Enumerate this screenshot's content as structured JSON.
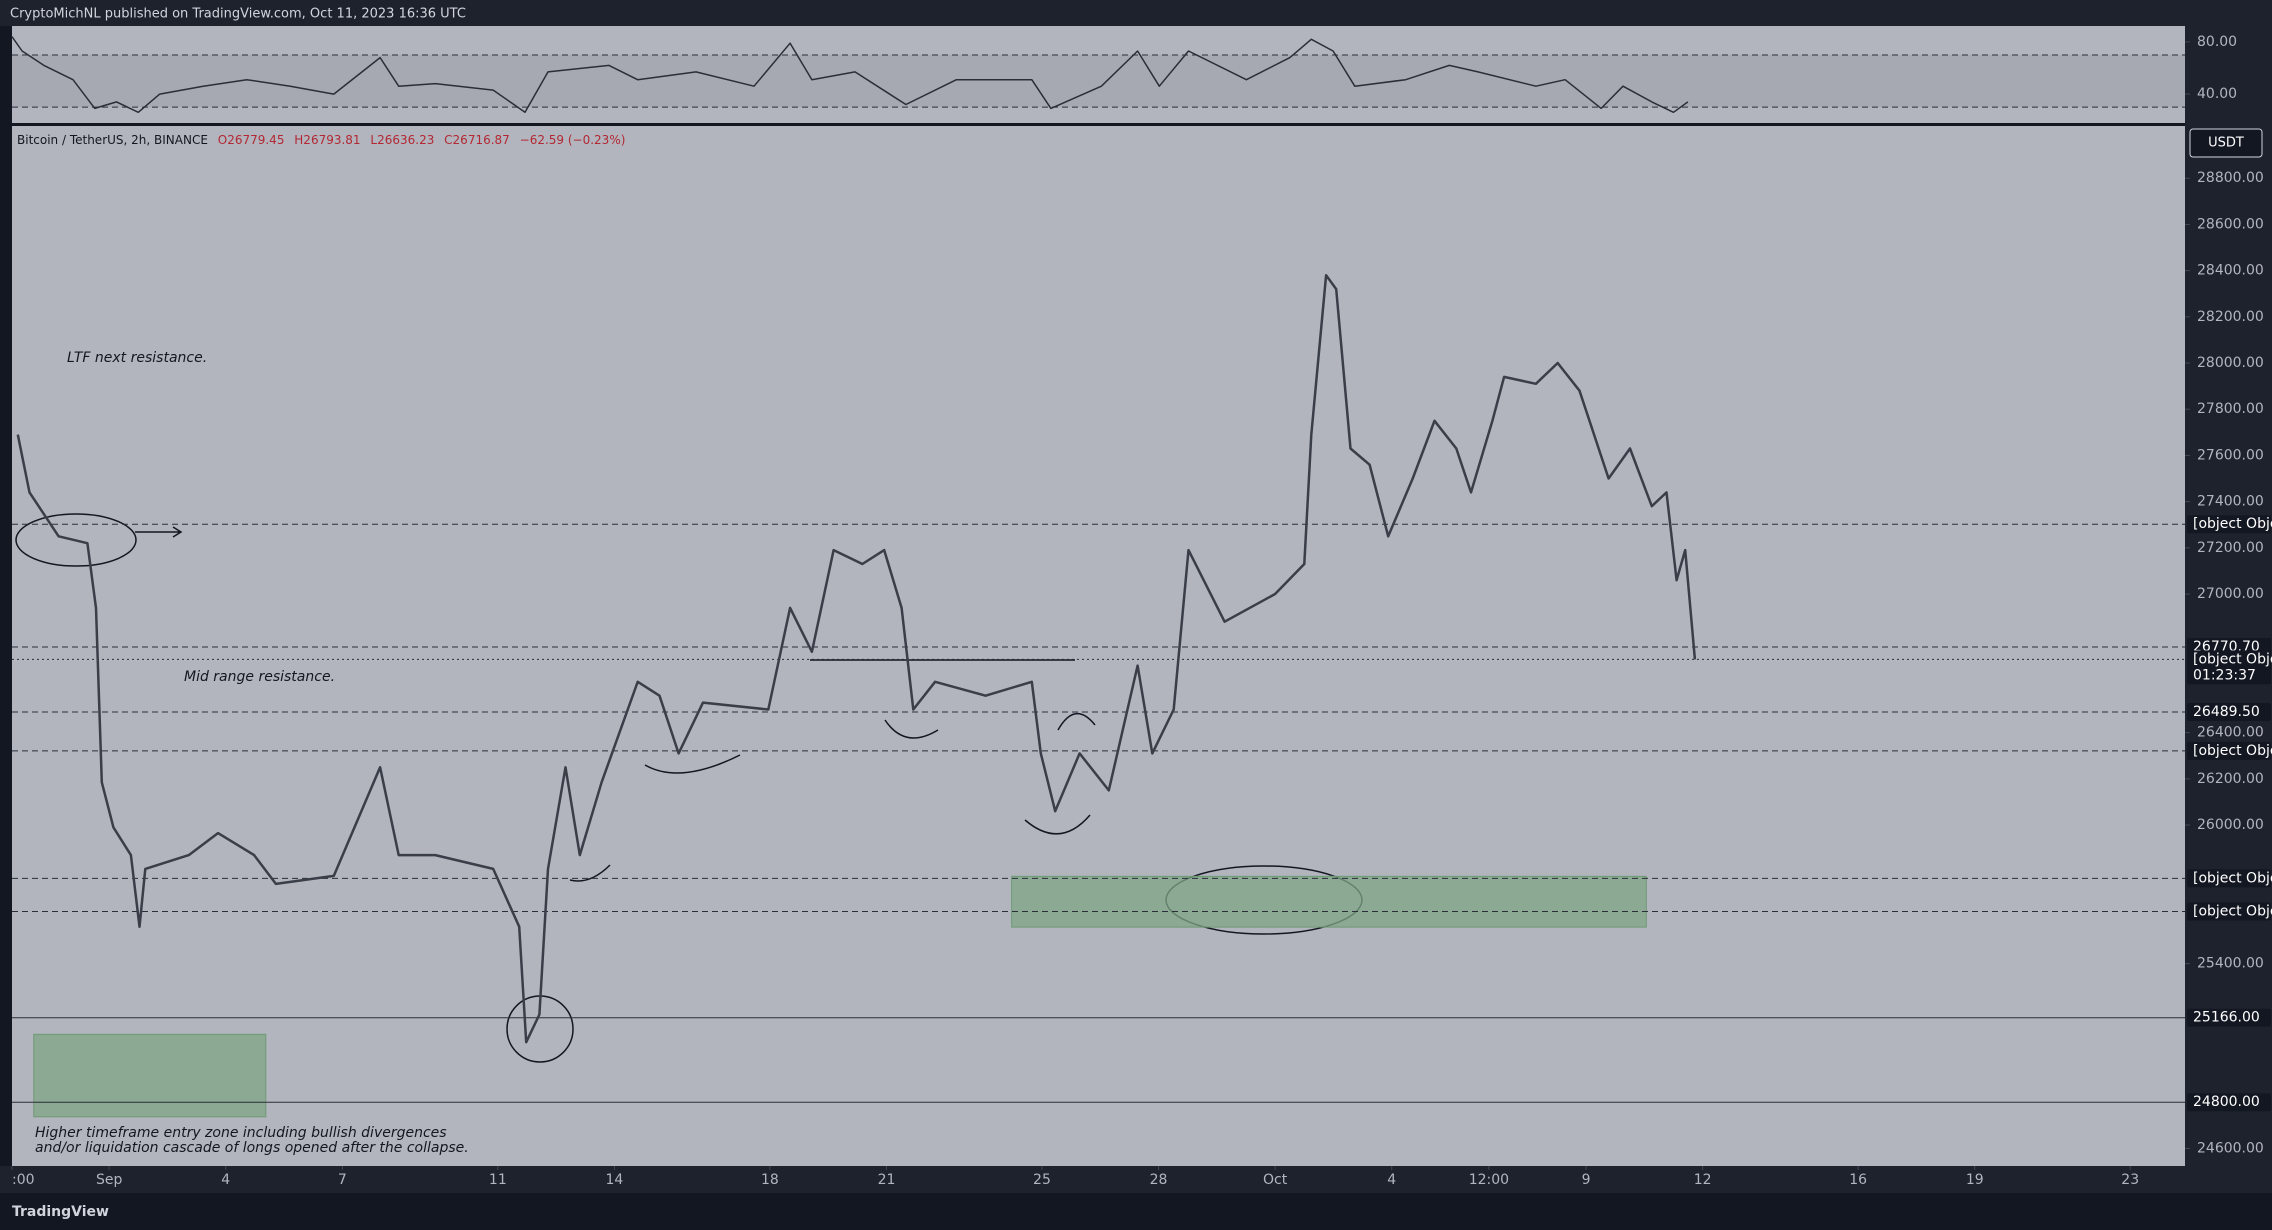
{
  "header": {
    "title": "CryptoMichNL published on TradingView.com, Oct 11, 2023 16:36 UTC"
  },
  "legend": {
    "symbol": "Bitcoin / TetherUS, 2h, BINANCE",
    "open": "O26779.45",
    "high": "H26793.81",
    "low": "L26636.23",
    "close": "C26716.87",
    "change": "−62.59 (−0.23%)"
  },
  "currency_button": "USDT",
  "chart_data": {
    "type": "line",
    "color": "#3a3e49",
    "x": [
      -2.35,
      -2.05,
      -1.3,
      -0.56,
      -0.34,
      -0.19,
      0.11,
      0.56,
      0.78,
      0.93,
      2.05,
      2.8,
      3.73,
      4.29,
      5.78,
      6.97,
      7.45,
      8.39,
      9.88,
      10.55,
      10.73,
      11.07,
      11.29,
      11.74,
      12.11,
      12.67,
      13.6,
      14.16,
      14.65,
      15.28,
      16.96,
      17.52,
      18.08,
      18.64,
      19.38,
      19.94,
      20.39,
      20.69,
      21.25,
      22.55,
      23.74,
      23.97,
      24.34,
      24.97,
      25.72,
      26.46,
      26.84,
      27.39,
      27.77,
      28.7,
      30,
      30.75,
      30.93,
      31.31,
      31.57,
      31.94,
      32.43,
      32.91,
      33.54,
      34.1,
      34.66,
      35.04,
      35.59,
      35.89,
      36.71,
      37.27,
      37.83,
      38.58,
      39.13,
      39.69,
      40.07,
      40.33,
      40.55,
      40.8
    ],
    "series": [
      {
        "name": "BTCUSDT",
        "values": [
          27690,
          27440,
          27250,
          27220,
          26940,
          26185,
          25990,
          25870,
          25560,
          25810,
          25870,
          25965,
          25870,
          25745,
          25780,
          26250,
          25870,
          25870,
          25810,
          25560,
          25060,
          25180,
          25810,
          26250,
          25870,
          26185,
          26620,
          26560,
          26310,
          26530,
          26500,
          26940,
          26750,
          27190,
          27130,
          27190,
          26940,
          26500,
          26620,
          26560,
          26620,
          26310,
          26060,
          26310,
          26150,
          26690,
          26310,
          26500,
          27190,
          26880,
          27000,
          27130,
          27690,
          28380,
          28320,
          27630,
          27560,
          27250,
          27500,
          27750,
          27630,
          27440,
          27750,
          27940,
          27910,
          28000,
          27880,
          27500,
          27630,
          27380,
          27440,
          27060,
          27190,
          26716.87
        ]
      }
    ],
    "xlim": [
      -2.5,
      53.41
    ],
    "ylim": [
      24524,
      29026
    ],
    "xticks": [
      {
        "value": -2.5,
        "label": ":00"
      },
      {
        "value": 0,
        "label": "Sep"
      },
      {
        "value": 3,
        "label": "4"
      },
      {
        "value": 6,
        "label": "7"
      },
      {
        "value": 10,
        "label": "11"
      },
      {
        "value": 13,
        "label": "14"
      },
      {
        "value": 17,
        "label": "18"
      },
      {
        "value": 20,
        "label": "21"
      },
      {
        "value": 24,
        "label": "25"
      },
      {
        "value": 27,
        "label": "28"
      },
      {
        "value": 30,
        "label": "Oct"
      },
      {
        "value": 33,
        "label": "4"
      },
      {
        "value": 35.5,
        "label": "12:00"
      },
      {
        "value": 38,
        "label": "9"
      },
      {
        "value": 41,
        "label": "12"
      },
      {
        "value": 45,
        "label": "16"
      },
      {
        "value": 48,
        "label": "19"
      },
      {
        "value": 52,
        "label": "23"
      }
    ],
    "yticks": [
      {
        "value": 28800,
        "label": "28800.00"
      },
      {
        "value": 28600,
        "label": "28600.00"
      },
      {
        "value": 28400,
        "label": "28400.00"
      },
      {
        "value": 28200,
        "label": "28200.00"
      },
      {
        "value": 28000,
        "label": "28000.00"
      },
      {
        "value": 27800,
        "label": "27800.00"
      },
      {
        "value": 27600,
        "label": "27600.00"
      },
      {
        "value": 27400,
        "label": "27400.00"
      },
      {
        "value": 27200,
        "label": "27200.00"
      },
      {
        "value": 27000,
        "label": "27000.00"
      },
      {
        "value": 26400,
        "label": "26400.00"
      },
      {
        "value": 26200,
        "label": "26200.00"
      },
      {
        "value": 26000,
        "label": "26000.00"
      },
      {
        "value": 25400,
        "label": "25400.00"
      },
      {
        "value": 24600,
        "label": "24600.00"
      }
    ],
    "price_levels": [
      {
        "value": 27302.27,
        "style": "dashed"
      },
      {
        "value": 26770.7,
        "label": "26770.70",
        "style": "dashed"
      },
      {
        "value": 26716.87,
        "style": "dotted",
        "countdown": "01:23:37"
      },
      {
        "value": 26489.5,
        "label": "26489.50",
        "style": "dashed"
      },
      {
        "value": 26321.18,
        "style": "dashed"
      },
      {
        "value": 25769.04,
        "style": "dashed"
      },
      {
        "value": 25625.75,
        "style": "dashed"
      },
      {
        "value": 25166,
        "label": "25166.00",
        "style": "solid"
      },
      {
        "value": 24800,
        "label": "24800.00",
        "style": "solid"
      }
    ],
    "zones": [
      {
        "x": [
          -1.94,
          4.03
        ],
        "y": [
          24737,
          25094
        ]
      },
      {
        "x": [
          23.22,
          39.55
        ],
        "y": [
          25558,
          25778
        ]
      }
    ]
  },
  "rsi": {
    "type": "line",
    "color": "#2a2e39",
    "x": [
      -2.5,
      -2.24,
      -1.68,
      -0.93,
      -0.37,
      0.19,
      0.75,
      1.3,
      2.42,
      3.54,
      4.66,
      5.78,
      6.97,
      7.45,
      8.39,
      9.88,
      10.7,
      11.29,
      12.86,
      13.6,
      15.1,
      16.59,
      17.52,
      18.08,
      19.19,
      20.5,
      21.8,
      23.74,
      24.23,
      25.53,
      26.46,
      27.02,
      27.77,
      29.26,
      30.38,
      30.93,
      31.49,
      32.05,
      33.36,
      34.48,
      35.22,
      36.71,
      37.46,
      38.39,
      38.95,
      39.69,
      40.25,
      40.62
    ],
    "values": [
      84,
      73,
      62,
      51,
      29,
      34,
      26,
      40,
      46,
      51,
      46,
      40,
      68,
      46,
      48,
      43,
      26,
      57,
      62,
      51,
      57,
      46,
      79,
      51,
      57,
      32,
      51,
      51,
      29,
      46,
      73,
      46,
      73,
      51,
      68,
      82,
      73,
      46,
      51,
      62,
      57,
      46,
      51,
      29,
      46,
      34,
      26,
      34
    ],
    "ylim": [
      17.8,
      92.2
    ],
    "yticks": [
      {
        "value": 80,
        "label": "80.00"
      },
      {
        "value": 40,
        "label": "40.00"
      }
    ],
    "bands": [
      70,
      30
    ]
  },
  "annotations": [
    "LTF next resistance.",
    "Mid range resistance.",
    "Higher timeframe entry zone including bullish divergences",
    "and/or liquidation cascade of longs opened after the collapse."
  ],
  "footer": {
    "brand": "TradingView"
  }
}
